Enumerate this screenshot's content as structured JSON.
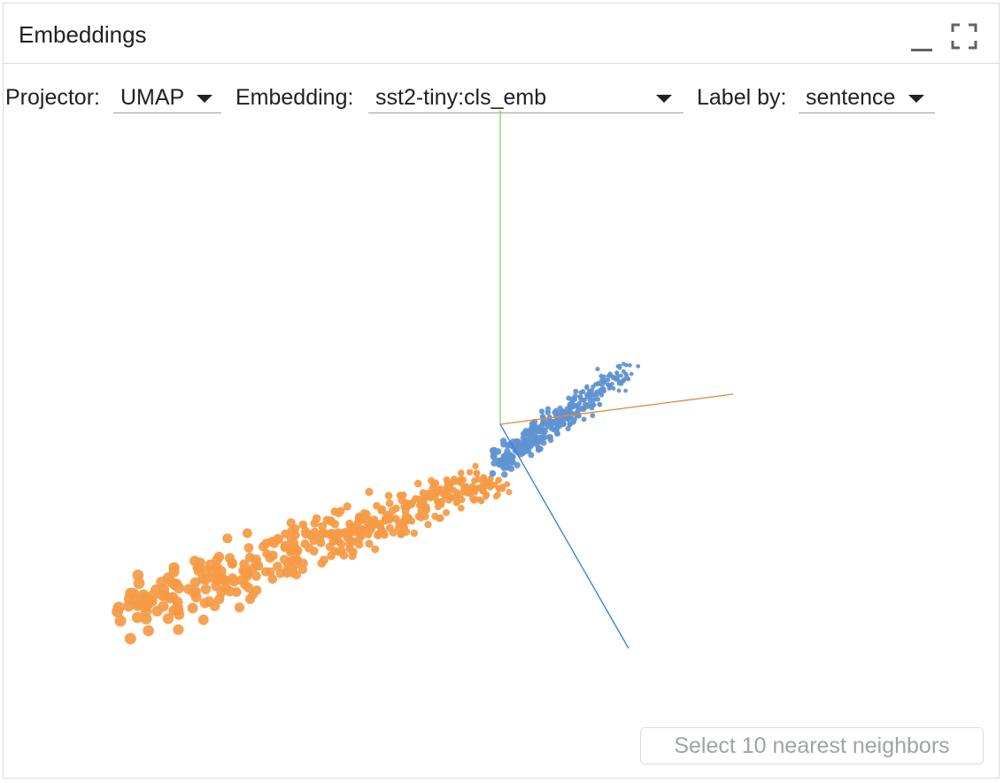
{
  "module": {
    "title": "Embeddings",
    "minimize_icon": "minimize-icon",
    "maximize_icon": "fullscreen-icon"
  },
  "toolbar": {
    "projector_label": "Projector:",
    "projector_value": "UMAP",
    "embedding_label": "Embedding:",
    "embedding_value": "sst2-tiny:cls_emb",
    "labelby_label": "Label by:",
    "labelby_value": "sentence"
  },
  "nearest_button": {
    "label": "Select 10 nearest neighbors",
    "disabled": true
  },
  "colors": {
    "positive_cluster": "#f59a45",
    "negative_cluster": "#5f93d0",
    "axis_y": "#7ed957",
    "axis_x": "#e08a3a",
    "axis_z": "#2f7fd8"
  }
}
